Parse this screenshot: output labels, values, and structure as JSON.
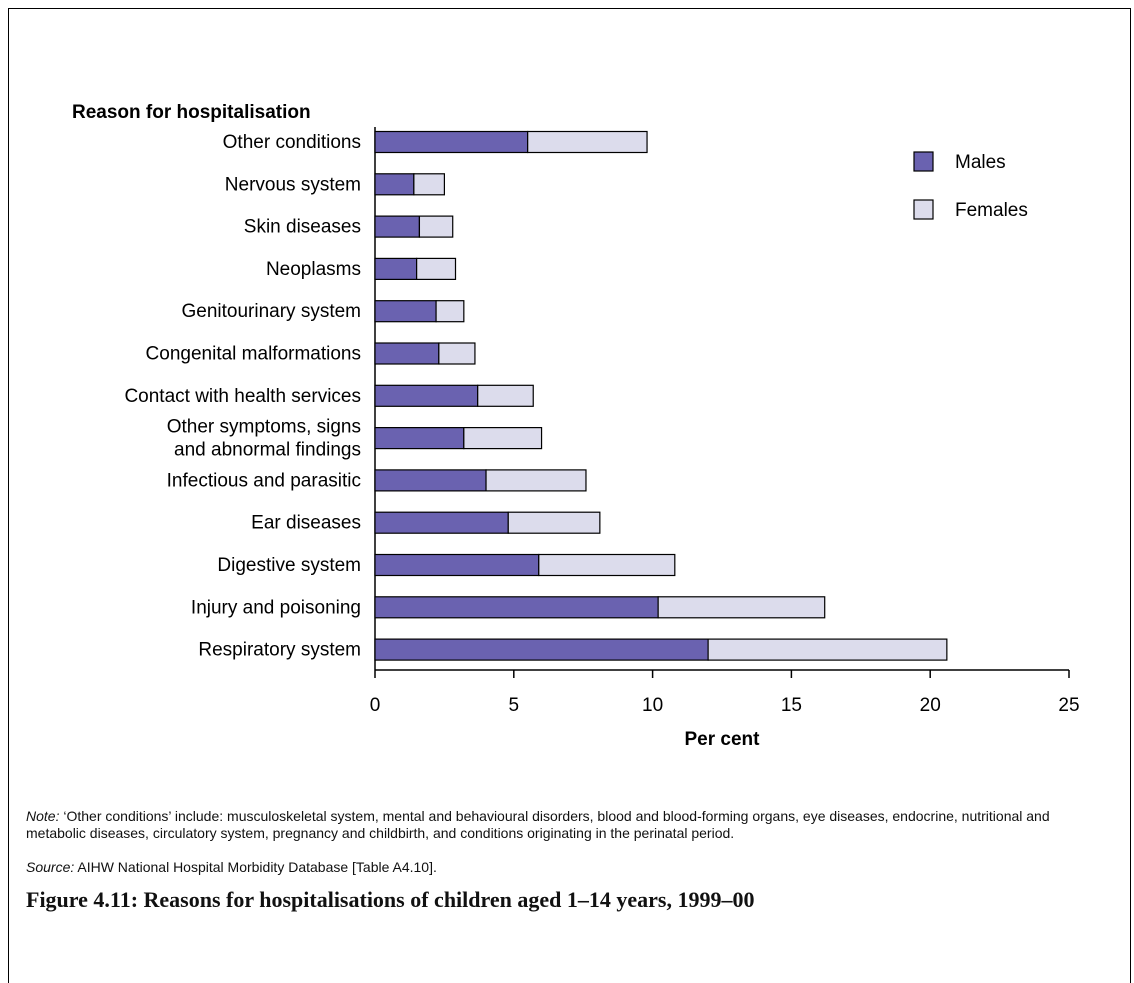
{
  "chart_data": {
    "type": "bar",
    "orientation": "horizontal",
    "stacked": true,
    "y_title": "Reason for hospitalisation",
    "xlabel": "Per cent",
    "xlim": [
      0,
      25
    ],
    "xticks": [
      0,
      5,
      10,
      15,
      20,
      25
    ],
    "grid": false,
    "legend_position": "top-right",
    "categories": [
      [
        "Other conditions"
      ],
      [
        "Nervous system"
      ],
      [
        "Skin diseases"
      ],
      [
        "Neoplasms"
      ],
      [
        "Genitourinary system"
      ],
      [
        "Congenital malformations"
      ],
      [
        "Contact with health services"
      ],
      [
        "Other symptoms, signs",
        "and abnormal findings"
      ],
      [
        "Infectious and parasitic"
      ],
      [
        "Ear diseases"
      ],
      [
        "Digestive system"
      ],
      [
        "Injury and poisoning"
      ],
      [
        "Respiratory system"
      ]
    ],
    "series": [
      {
        "name": "Males",
        "color": "#6a62b0",
        "values": [
          5.5,
          1.4,
          1.6,
          1.5,
          2.2,
          2.3,
          3.7,
          3.2,
          4.0,
          4.8,
          5.9,
          10.2,
          12.0
        ]
      },
      {
        "name": "Females",
        "color": "#dcdcec",
        "values": [
          4.3,
          1.1,
          1.2,
          1.4,
          1.0,
          1.3,
          2.0,
          2.8,
          3.6,
          3.3,
          4.9,
          6.0,
          8.6
        ]
      }
    ]
  },
  "note": {
    "label": "Note:",
    "text": " ‘Other conditions’ include: musculoskeletal system, mental and behavioural disorders, blood and blood-forming organs, eye diseases, endocrine, nutritional and metabolic diseases, circulatory system, pregnancy and childbirth, and conditions originating in the perinatal period."
  },
  "source": {
    "label": "Source:",
    "text": " AIHW National Hospital Morbidity Database [Table A4.10]."
  },
  "caption": "Figure 4.11: Reasons for hospitalisations of children aged 1–14 years, 1999–00"
}
